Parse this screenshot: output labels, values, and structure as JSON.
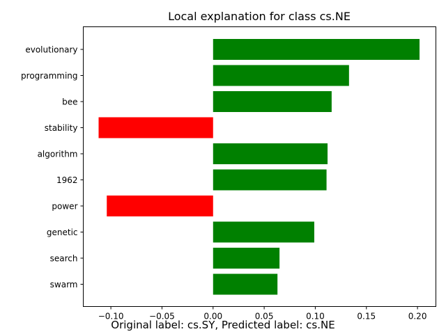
{
  "chart_data": {
    "type": "bar",
    "orientation": "horizontal",
    "title": "Local explanation for class cs.NE",
    "xlabel": "",
    "ylabel": "",
    "categories": [
      "evolutionary",
      "programming",
      "bee",
      "stability",
      "algorithm",
      "1962",
      "power",
      "genetic",
      "search",
      "swarm"
    ],
    "values": [
      0.202,
      0.133,
      0.116,
      -0.112,
      0.112,
      0.111,
      -0.104,
      0.099,
      0.065,
      0.063
    ],
    "xlim": [
      -0.127,
      0.218
    ],
    "xticks": [
      "−0.10",
      "−0.05",
      "0.00",
      "0.05",
      "0.10",
      "0.15",
      "0.20"
    ],
    "xtick_values": [
      -0.1,
      -0.05,
      0.0,
      0.05,
      0.1,
      0.15,
      0.2
    ],
    "colors": {
      "positive": "#008000",
      "negative": "#ff0000"
    },
    "grid": false,
    "legend": "none"
  },
  "caption": "Original label: cs.SY, Predicted label: cs.NE"
}
